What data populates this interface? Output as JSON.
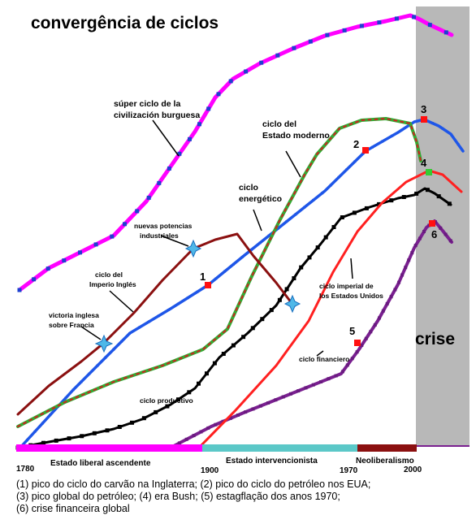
{
  "title": "convergência de ciclos",
  "crise_label": "crise",
  "colors": {
    "superciclo": "#ff00ff",
    "estado": "#1e56e8",
    "estado_moderno": "#33aa33",
    "estado_moderno_dash": "#d02020",
    "energetico": "#8b1010",
    "eua": "#ff2020",
    "produtivo": "#000000",
    "financeiro": "#7a2090",
    "liberal_bar": "#ff00ff",
    "intervencionista_bar": "#5bc8c8",
    "neoliberal_bar": "#8b1010",
    "crise_band": "#b8b8b8"
  },
  "cycle_labels": {
    "superciclo": [
      "súper ciclo de la",
      "civilización burguesa"
    ],
    "estado_moderno": [
      "ciclo del",
      "Estado moderno"
    ],
    "energetico": [
      "ciclo",
      "energético"
    ],
    "potencias": [
      "nuevas potencias",
      "industriales"
    ],
    "imperio_ingles": [
      "ciclo del",
      "Imperio Inglés"
    ],
    "victoria": [
      "victoria inglesa",
      "sobre Francia"
    ],
    "imperial_eua": [
      "ciclo imperial de",
      "los Estados Unidos"
    ],
    "financiero": "ciclo financiero",
    "produtivo": "ciclo productivo"
  },
  "markers": [
    "1",
    "2",
    "3",
    "4",
    "5",
    "6"
  ],
  "timeline": {
    "years": [
      "1780",
      "1900",
      "1970",
      "2000"
    ],
    "eras": [
      "Estado liberal ascendente",
      "Estado intervencionista",
      "Neoliberalismo"
    ]
  },
  "caption": [
    "(1) pico do ciclo do carvão na Inglaterra; (2) pico do ciclo do petróleo nos EUA;",
    "(3) pico global do petróleo; (4) era Bush; (5) estagflação dos anos 1970;",
    "(6) crise financeira global"
  ]
}
